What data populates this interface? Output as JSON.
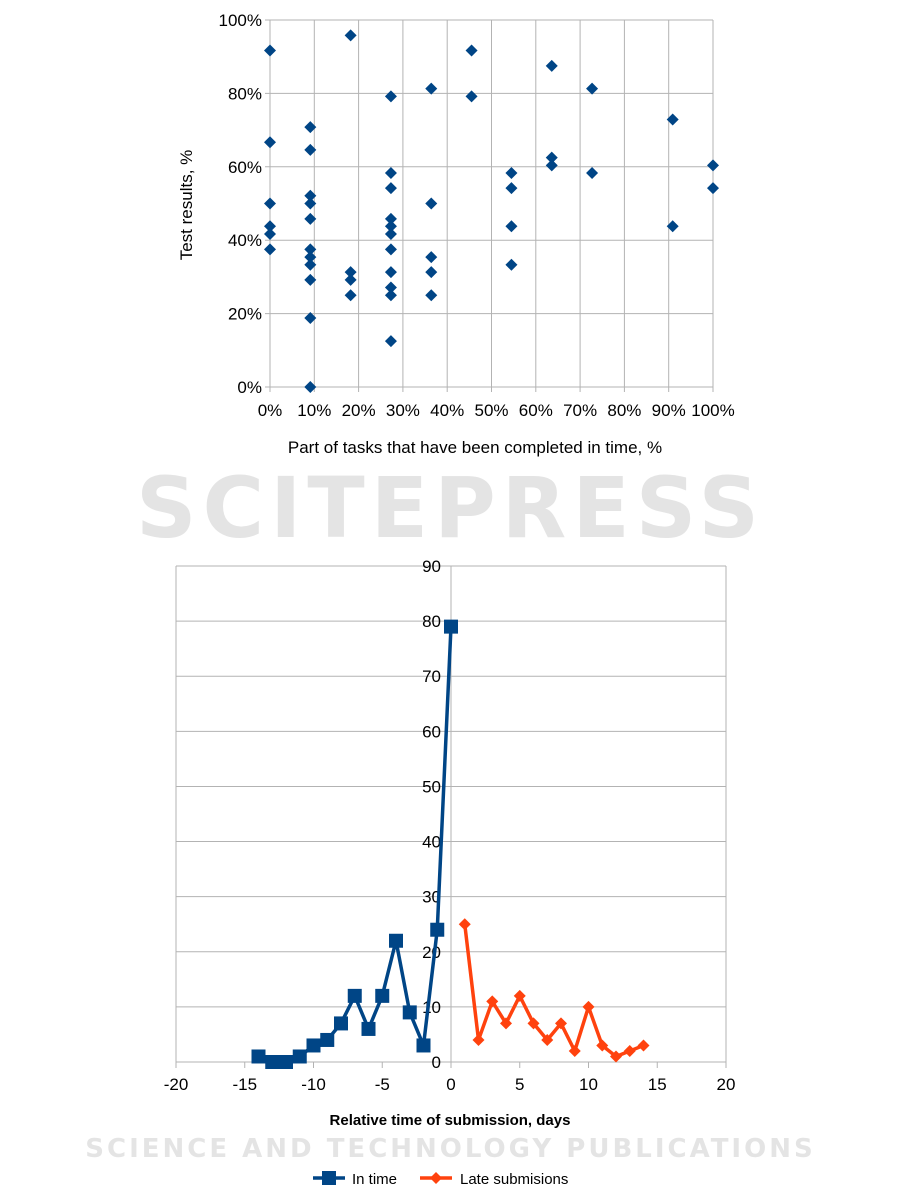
{
  "watermark": {
    "title": "SCITEPRESS",
    "subtitle": "SCIENCE AND TECHNOLOGY PUBLICATIONS"
  },
  "chart_data": [
    {
      "type": "scatter",
      "title": "",
      "xlabel": "Part of tasks that have been completed in time, %",
      "ylabel": "Test results, %",
      "xlim": [
        0,
        100
      ],
      "ylim": [
        0,
        100
      ],
      "xticks": [
        "0%",
        "10%",
        "20%",
        "30%",
        "40%",
        "50%",
        "60%",
        "70%",
        "80%",
        "90%",
        "100%"
      ],
      "yticks": [
        "0%",
        "20%",
        "40%",
        "60%",
        "80%",
        "100%"
      ],
      "grid": true,
      "color": "#004586",
      "points": [
        [
          0,
          91.7
        ],
        [
          0,
          66.7
        ],
        [
          0,
          50
        ],
        [
          0,
          43.8
        ],
        [
          0,
          41.7
        ],
        [
          0,
          37.5
        ],
        [
          9.1,
          70.8
        ],
        [
          9.1,
          64.6
        ],
        [
          9.1,
          52.1
        ],
        [
          9.1,
          50
        ],
        [
          9.1,
          45.8
        ],
        [
          9.1,
          37.5
        ],
        [
          9.1,
          35.4
        ],
        [
          9.1,
          33.3
        ],
        [
          9.1,
          29.2
        ],
        [
          9.1,
          18.8
        ],
        [
          9.1,
          0
        ],
        [
          18.2,
          95.8
        ],
        [
          18.2,
          31.3
        ],
        [
          18.2,
          29.2
        ],
        [
          18.2,
          25
        ],
        [
          27.3,
          79.2
        ],
        [
          27.3,
          58.3
        ],
        [
          27.3,
          54.2
        ],
        [
          27.3,
          45.8
        ],
        [
          27.3,
          43.8
        ],
        [
          27.3,
          41.7
        ],
        [
          27.3,
          37.5
        ],
        [
          27.3,
          31.3
        ],
        [
          27.3,
          27.1
        ],
        [
          27.3,
          25
        ],
        [
          27.3,
          12.5
        ],
        [
          36.4,
          81.3
        ],
        [
          36.4,
          50
        ],
        [
          36.4,
          35.4
        ],
        [
          36.4,
          31.3
        ],
        [
          36.4,
          25
        ],
        [
          45.5,
          91.7
        ],
        [
          45.5,
          79.2
        ],
        [
          54.5,
          58.3
        ],
        [
          54.5,
          54.2
        ],
        [
          54.5,
          43.8
        ],
        [
          54.5,
          33.3
        ],
        [
          63.6,
          87.5
        ],
        [
          63.6,
          62.5
        ],
        [
          63.6,
          60.4
        ],
        [
          72.7,
          81.3
        ],
        [
          72.7,
          58.3
        ],
        [
          90.9,
          72.9
        ],
        [
          90.9,
          43.8
        ],
        [
          100,
          60.4
        ],
        [
          100,
          54.2
        ]
      ]
    },
    {
      "type": "line",
      "title": "",
      "xlabel": "Relative time of submission, days",
      "ylabel": "",
      "xlim": [
        -20,
        20
      ],
      "ylim": [
        0,
        90
      ],
      "xticks": [
        "-20",
        "-15",
        "-10",
        "-5",
        "0",
        "5",
        "10",
        "15",
        "20"
      ],
      "yticks": [
        "0",
        "10",
        "20",
        "30",
        "40",
        "50",
        "60",
        "70",
        "80",
        "90"
      ],
      "grid": true,
      "legend": "bottom",
      "series": [
        {
          "name": "In time",
          "color": "#004586",
          "marker": "square",
          "x": [
            -14,
            -13,
            -12,
            -11,
            -10,
            -9,
            -8,
            -7,
            -6,
            -5,
            -4,
            -3,
            -2,
            -1,
            0
          ],
          "y": [
            1,
            0,
            0,
            1,
            3,
            4,
            7,
            12,
            6,
            12,
            22,
            9,
            3,
            24,
            79
          ]
        },
        {
          "name": "Late submisions",
          "color": "#ff420e",
          "marker": "diamond",
          "x": [
            1,
            2,
            3,
            4,
            5,
            6,
            7,
            8,
            9,
            10,
            11,
            12,
            13,
            14
          ],
          "y": [
            25,
            4,
            11,
            7,
            12,
            7,
            4,
            7,
            2,
            10,
            3,
            1,
            2,
            3
          ]
        }
      ]
    }
  ]
}
